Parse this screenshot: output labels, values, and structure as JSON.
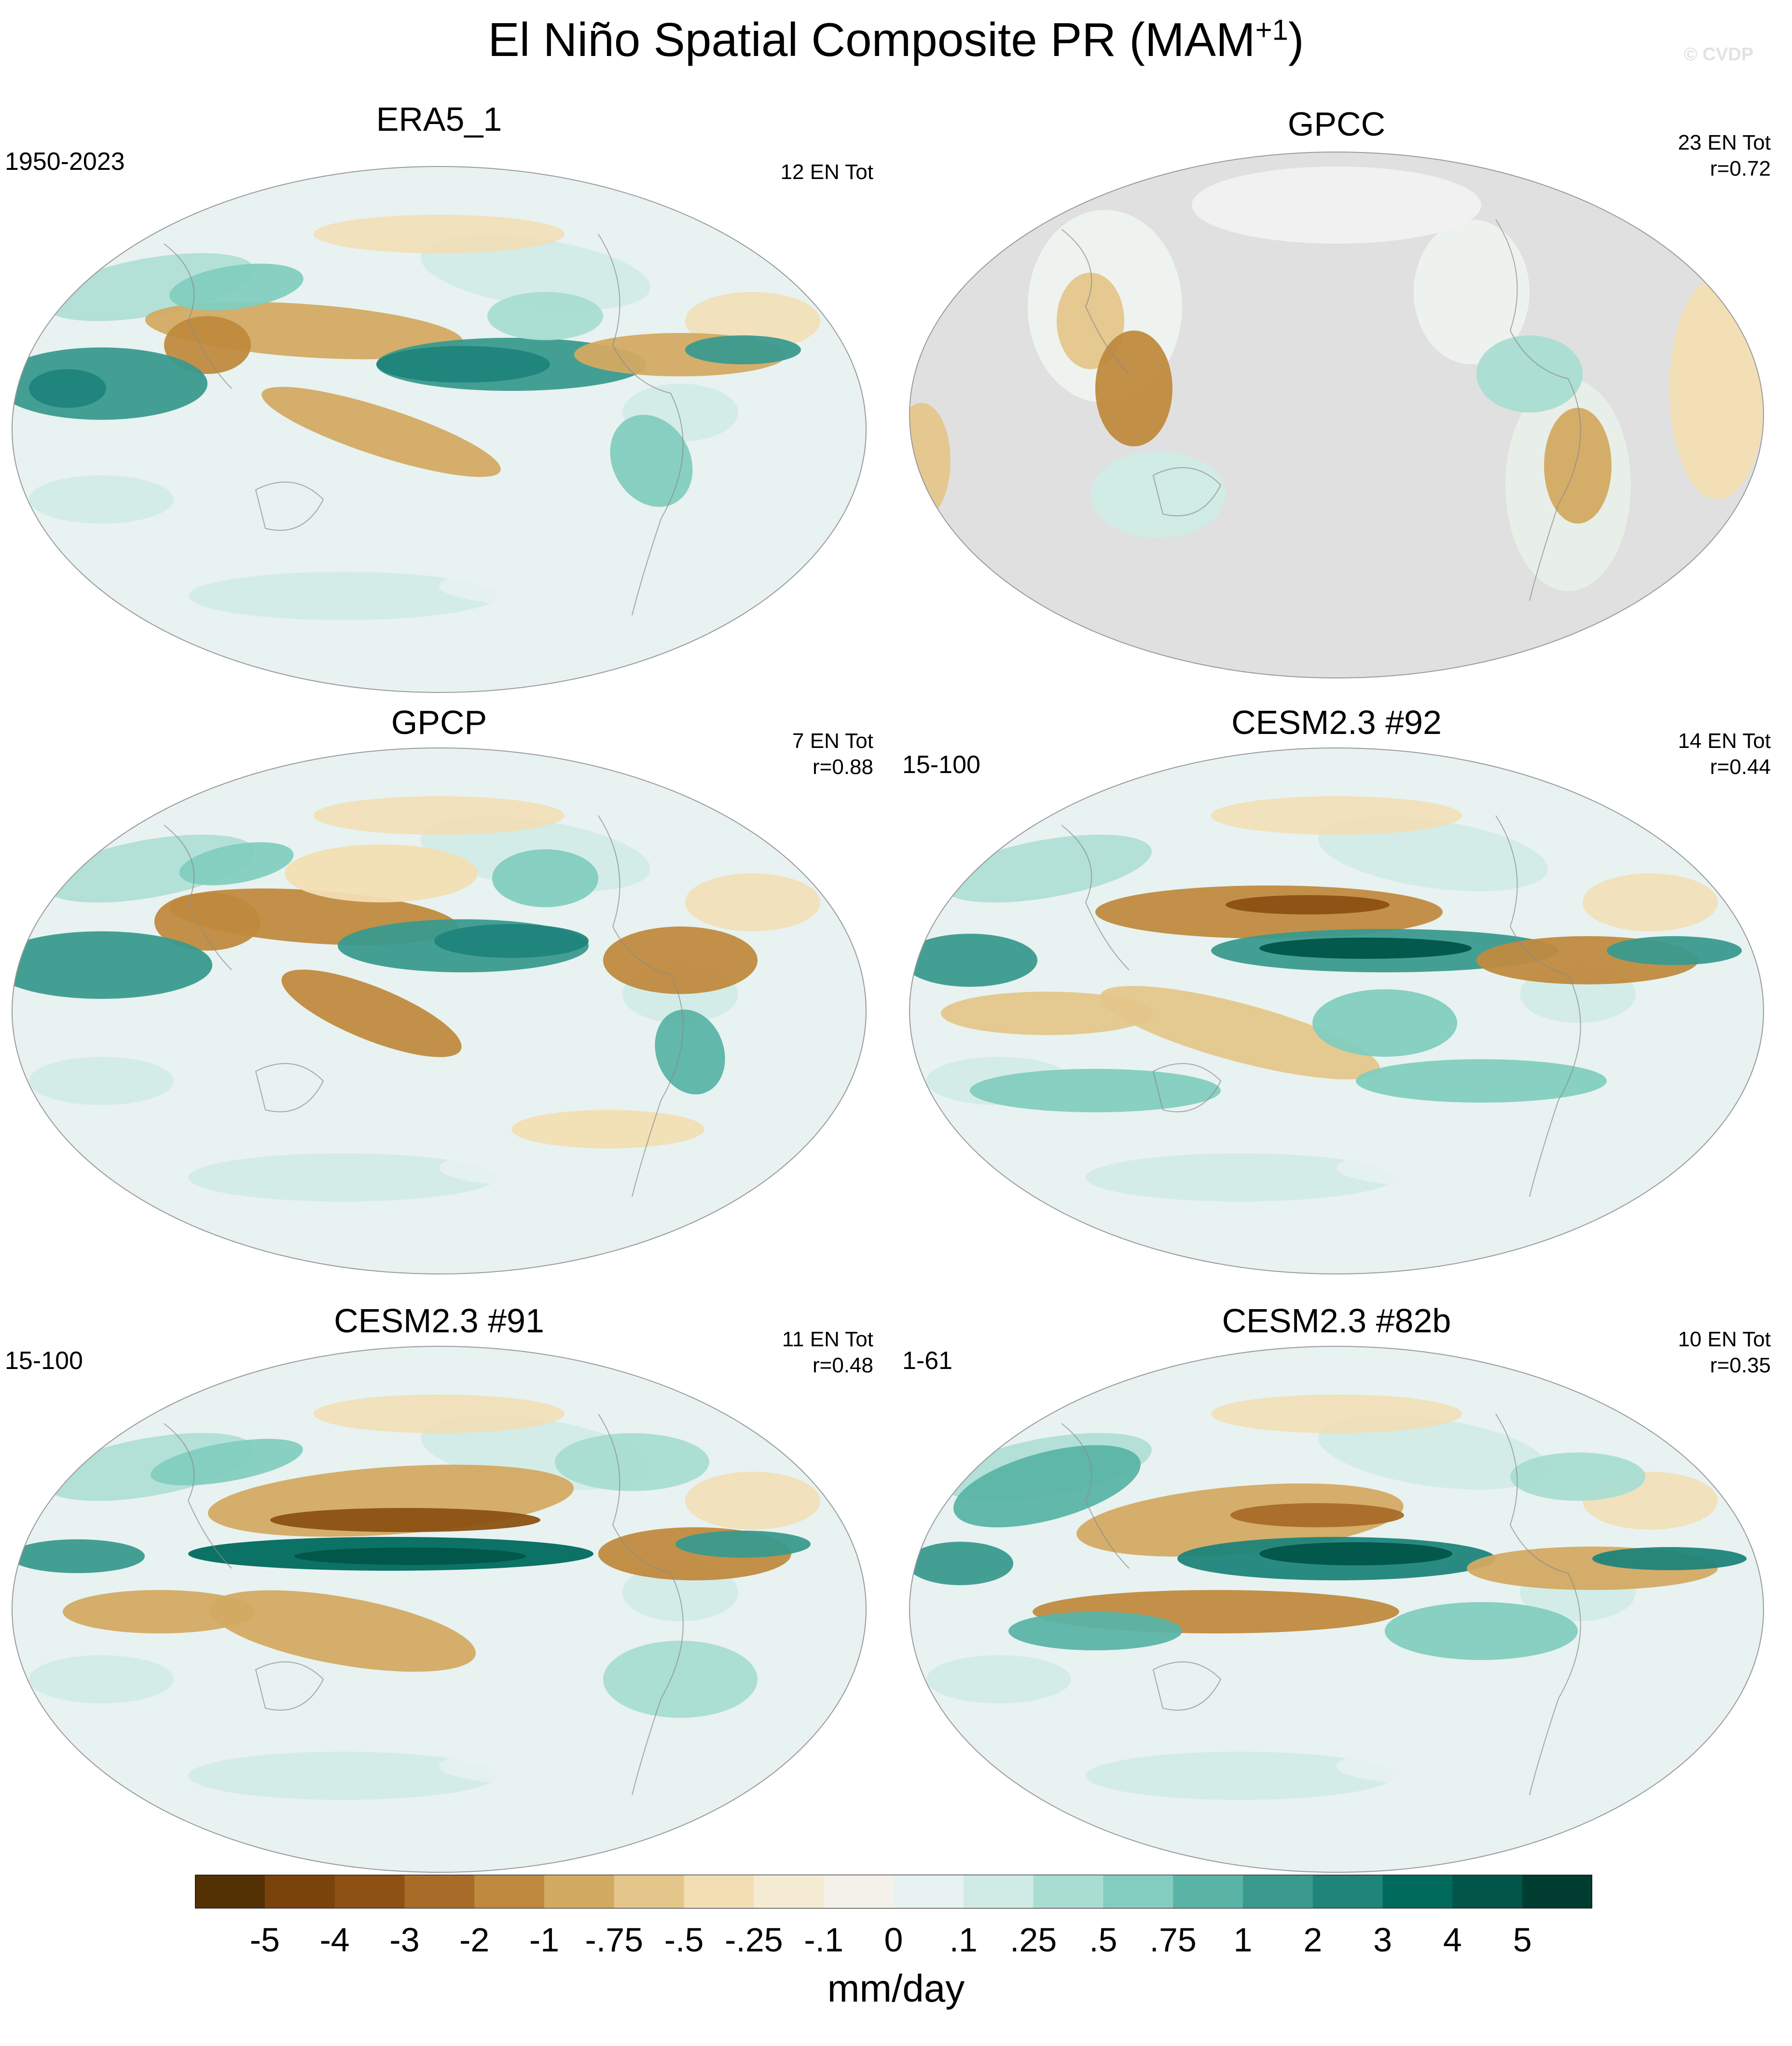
{
  "title_main": "El Niño Spatial Composite PR (MAM",
  "title_sup": "+1",
  "title_close": ")",
  "watermark": "© CVDP",
  "panels": [
    {
      "title": "ERA5_1",
      "range": "1950-2023",
      "stats1": "12 EN Tot",
      "stats2": "",
      "variant": 0
    },
    {
      "title": "GPCC",
      "range": "",
      "stats1": "23 EN Tot",
      "stats2": "r=0.72",
      "variant": 1
    },
    {
      "title": "GPCP",
      "range": "",
      "stats1": "7 EN Tot",
      "stats2": "r=0.88",
      "variant": 2
    },
    {
      "title": "CESM2.3 #92",
      "range": "15-100",
      "stats1": "14 EN Tot",
      "stats2": "r=0.44",
      "variant": 3
    },
    {
      "title": "CESM2.3 #91",
      "range": "15-100",
      "stats1": "11 EN Tot",
      "stats2": "r=0.48",
      "variant": 4
    },
    {
      "title": "CESM2.3 #82b",
      "range": "1-61",
      "stats1": "10 EN Tot",
      "stats2": "r=0.35",
      "variant": 5
    }
  ],
  "colorbar": {
    "colors": [
      "#543005",
      "#7a430c",
      "#8c5113",
      "#a96c28",
      "#c08a3e",
      "#d3aa62",
      "#e4c68a",
      "#f2deb3",
      "#f5ebd3",
      "#f3f1ea",
      "#e8f2f0",
      "#d0ebe5",
      "#a9ddd2",
      "#82cdbf",
      "#5ab4a6",
      "#3a9a8e",
      "#1f847a",
      "#006a5d",
      "#015549",
      "#003c30"
    ],
    "labels": [
      "-5",
      "-4",
      "-3",
      "-2",
      "-1",
      "-.75",
      "-.5",
      "-.25",
      "-.1",
      "0",
      ".1",
      ".25",
      ".5",
      ".75",
      "1",
      "2",
      "3",
      "4",
      "5"
    ],
    "units": "mm/day"
  }
}
